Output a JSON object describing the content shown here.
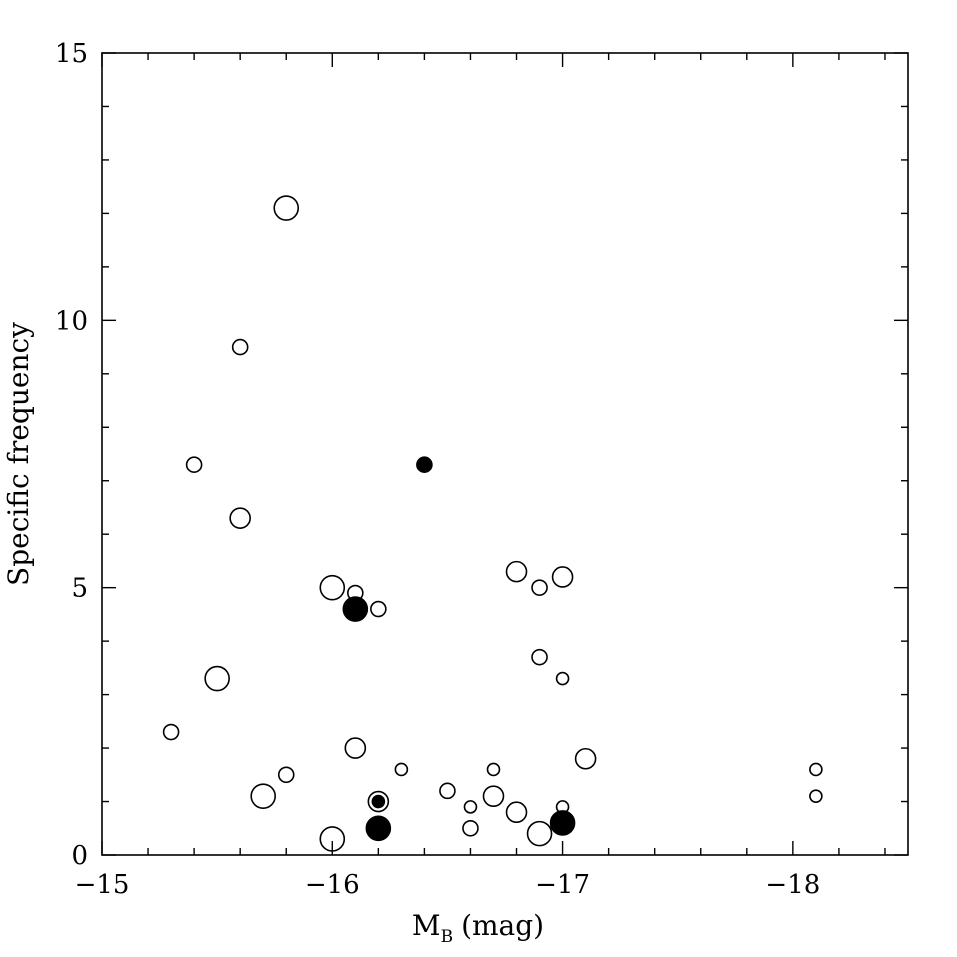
{
  "chart_data": {
    "type": "scatter",
    "title": "",
    "xlabel": "M",
    "xlabel_subscript": "B",
    "xlabel_unit": "(mag)",
    "ylabel": "Specific frequency",
    "xlim": [
      -15,
      -18.5
    ],
    "ylim": [
      0,
      15
    ],
    "x_ticks": [
      -15,
      -16,
      -17,
      -18
    ],
    "x_tick_labels": [
      "−15",
      "−16",
      "−17",
      "−18"
    ],
    "y_ticks": [
      0,
      5,
      10,
      15
    ],
    "y_tick_labels": [
      "0",
      "5",
      "10",
      "15"
    ],
    "grid": false,
    "legend": "none",
    "series": [
      {
        "marker": "open-circle",
        "points": [
          {
            "x": -15.3,
            "y": 2.3,
            "size": "small"
          },
          {
            "x": -15.4,
            "y": 7.3,
            "size": "small"
          },
          {
            "x": -15.5,
            "y": 3.3,
            "size": "large"
          },
          {
            "x": -15.6,
            "y": 9.5,
            "size": "small"
          },
          {
            "x": -15.6,
            "y": 6.3,
            "size": "medium"
          },
          {
            "x": -15.7,
            "y": 1.1,
            "size": "large"
          },
          {
            "x": -15.8,
            "y": 12.1,
            "size": "large"
          },
          {
            "x": -15.8,
            "y": 1.5,
            "size": "small"
          },
          {
            "x": -16.0,
            "y": 5.0,
            "size": "large"
          },
          {
            "x": -16.0,
            "y": 0.3,
            "size": "large"
          },
          {
            "x": -16.1,
            "y": 4.9,
            "size": "small"
          },
          {
            "x": -16.1,
            "y": 2.0,
            "size": "medium"
          },
          {
            "x": -16.2,
            "y": 4.6,
            "size": "small"
          },
          {
            "x": -16.2,
            "y": 1.0,
            "size": "medium"
          },
          {
            "x": -16.3,
            "y": 1.6,
            "size": "tiny"
          },
          {
            "x": -16.5,
            "y": 1.2,
            "size": "small"
          },
          {
            "x": -16.6,
            "y": 0.9,
            "size": "tiny"
          },
          {
            "x": -16.6,
            "y": 0.5,
            "size": "small"
          },
          {
            "x": -16.7,
            "y": 1.6,
            "size": "tiny"
          },
          {
            "x": -16.7,
            "y": 1.1,
            "size": "medium"
          },
          {
            "x": -16.8,
            "y": 5.3,
            "size": "medium"
          },
          {
            "x": -16.8,
            "y": 0.8,
            "size": "medium"
          },
          {
            "x": -16.9,
            "y": 5.0,
            "size": "small"
          },
          {
            "x": -16.9,
            "y": 3.7,
            "size": "small"
          },
          {
            "x": -16.9,
            "y": 0.4,
            "size": "large"
          },
          {
            "x": -17.0,
            "y": 5.2,
            "size": "medium"
          },
          {
            "x": -17.0,
            "y": 3.3,
            "size": "tiny"
          },
          {
            "x": -17.0,
            "y": 0.9,
            "size": "tiny"
          },
          {
            "x": -17.1,
            "y": 1.8,
            "size": "medium"
          },
          {
            "x": -18.1,
            "y": 1.6,
            "size": "tiny"
          },
          {
            "x": -18.1,
            "y": 1.1,
            "size": "tiny"
          }
        ]
      },
      {
        "marker": "filled-circle",
        "points": [
          {
            "x": -16.1,
            "y": 4.6,
            "size": "large"
          },
          {
            "x": -16.4,
            "y": 7.3,
            "size": "small"
          },
          {
            "x": -16.2,
            "y": 0.5,
            "size": "large"
          },
          {
            "x": -16.2,
            "y": 1.0,
            "size": "tiny"
          },
          {
            "x": -17.0,
            "y": 0.6,
            "size": "large"
          }
        ]
      }
    ]
  }
}
